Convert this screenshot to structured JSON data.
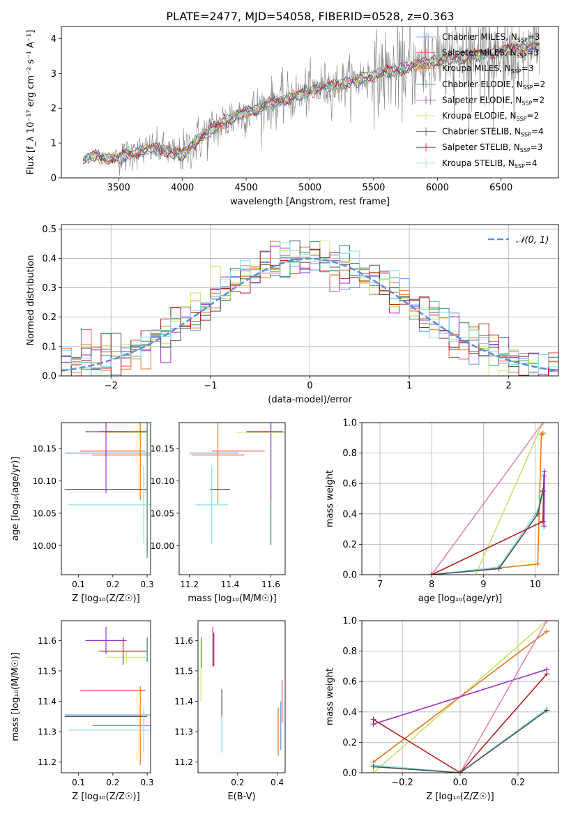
{
  "title": "PLATE=2477, MJD=54058, FIBERID=0528, z=0.363",
  "models": [
    {
      "name": "Chabrier MILES",
      "nssp": "3",
      "color": "#6495ED"
    },
    {
      "name": "Salpeter MILES",
      "nssp": "3",
      "color": "#EF5350"
    },
    {
      "name": "Kroupa MILES",
      "nssp": "3",
      "color": "#E6781E"
    },
    {
      "name": "Chabrier ELODIE",
      "nssp": "2",
      "color": "#2E8B57"
    },
    {
      "name": "Salpeter ELODIE",
      "nssp": "2",
      "color": "#9932CC"
    },
    {
      "name": "Kroupa ELODIE",
      "nssp": "2",
      "color": "#C5E36E"
    },
    {
      "name": "Chabrier STELIB",
      "nssp": "4",
      "color": "#505050"
    },
    {
      "name": "Salpeter STELIB",
      "nssp": "3",
      "color": "#B22222"
    },
    {
      "name": "Kroupa STELIB",
      "nssp": "4",
      "color": "#80DEEA"
    }
  ],
  "chart_data": [
    {
      "id": "spectrum",
      "type": "line",
      "xlabel": "wavelength [Angstrom, rest frame]",
      "ylabel": "Flux [f_λ 10⁻¹⁷ erg cm⁻² s⁻¹ A⁻¹]",
      "xlim": [
        3050,
        6950
      ],
      "ylim": [
        0,
        4.35
      ],
      "xticks": [
        3500,
        4000,
        4500,
        5000,
        5500,
        6000,
        6500
      ],
      "yticks": [
        0,
        1,
        2,
        3,
        4
      ],
      "legend_loc": "right",
      "data_color": "#808080",
      "wavelength": [
        3220,
        3300,
        3400,
        3500,
        3600,
        3700,
        3800,
        3900,
        4000,
        4100,
        4200,
        4300,
        4400,
        4500,
        4600,
        4700,
        4800,
        4900,
        5000,
        5100,
        5200,
        5300,
        5400,
        5500,
        5600,
        5700,
        5800,
        5900,
        6000,
        6100,
        6200,
        6300,
        6400,
        6500,
        6600,
        6750
      ],
      "flux": [
        0.5,
        0.65,
        0.58,
        0.55,
        0.7,
        0.8,
        0.85,
        0.75,
        0.65,
        1.05,
        1.3,
        1.55,
        1.75,
        1.9,
        2.0,
        2.15,
        2.25,
        2.35,
        2.5,
        2.6,
        2.65,
        2.75,
        2.85,
        2.95,
        3.05,
        3.1,
        3.2,
        3.3,
        3.35,
        3.4,
        3.45,
        3.5,
        3.6,
        3.65,
        3.7,
        3.75
      ]
    },
    {
      "id": "residuals",
      "type": "step",
      "xlabel": "(data-model)/error",
      "ylabel": "Normed distribution",
      "xlim": [
        -2.5,
        2.5
      ],
      "ylim": [
        0,
        0.515
      ],
      "xticks": [
        -2,
        -1,
        0,
        1,
        2
      ],
      "yticks": [
        0,
        0.1,
        0.2,
        0.3,
        0.4,
        0.5
      ],
      "grid": true,
      "gauss_label": "𝒩(0, 1)",
      "gauss_color": "#5B8FD8"
    },
    {
      "id": "age_vs_Z",
      "type": "errorbar",
      "xlabel": "Z [log₁₀(Z/Z☉)]",
      "ylabel": "age  [log₁₀(age/yr)]",
      "xlim": [
        0.05,
        0.31
      ],
      "ylim": [
        9.955,
        10.19
      ],
      "xticks": [
        0.1,
        0.2,
        0.3
      ],
      "yticks": [
        10.0,
        10.05,
        10.1,
        10.15
      ],
      "points": [
        {
          "model": 0,
          "x": 0.2,
          "y": 10.143,
          "xerr": 0.14,
          "yerr": 0.0
        },
        {
          "model": 1,
          "x": 0.2,
          "y": 10.146,
          "xerr": 0.095,
          "yerr": 0.0
        },
        {
          "model": 2,
          "x": 0.28,
          "y": 10.14,
          "xerr": 0.14,
          "yerr": 0.07
        },
        {
          "model": 3,
          "x": 0.3,
          "y": 10.176,
          "xerr": 0.0,
          "yerr": 0.195
        },
        {
          "model": 4,
          "x": 0.18,
          "y": 10.176,
          "xerr": 0.06,
          "yerr": 0.095
        },
        {
          "model": 5,
          "x": 0.24,
          "y": 10.175,
          "xerr": 0.06,
          "yerr": 0.0
        },
        {
          "model": 6,
          "x": 0.18,
          "y": 10.087,
          "xerr": 0.12,
          "yerr": 0.0
        },
        {
          "model": 7,
          "x": 0.23,
          "y": 10.176,
          "xerr": 0.07,
          "yerr": 0.0
        },
        {
          "model": 8,
          "x": 0.29,
          "y": 10.063,
          "xerr": 0.22,
          "yerr": 0.06
        }
      ]
    },
    {
      "id": "age_vs_mass",
      "type": "errorbar",
      "xlabel": "mass [log₁₀(M/M☉)]",
      "ylabel": "",
      "xlim": [
        11.15,
        11.67
      ],
      "ylim": [
        9.955,
        10.19
      ],
      "xticks": [
        11.2,
        11.4,
        11.6
      ],
      "yticks": [
        10.0,
        10.05,
        10.1,
        10.15
      ],
      "points": [
        {
          "model": 0,
          "x": 11.32,
          "y": 10.143,
          "xerr": 0.12,
          "yerr": 0.0
        },
        {
          "model": 1,
          "x": 11.44,
          "y": 10.146,
          "xerr": 0.13,
          "yerr": 0.0
        },
        {
          "model": 2,
          "x": 11.34,
          "y": 10.14,
          "xerr": 0.13,
          "yerr": 0.075
        },
        {
          "model": 3,
          "x": 11.6,
          "y": 10.176,
          "xerr": 0.0,
          "yerr": 0.175
        },
        {
          "model": 4,
          "x": 11.6,
          "y": 10.176,
          "xerr": 0.0,
          "yerr": 0.105
        },
        {
          "model": 5,
          "x": 11.56,
          "y": 10.175,
          "xerr": 0.13,
          "yerr": 0.0
        },
        {
          "model": 6,
          "x": 11.35,
          "y": 10.087,
          "xerr": 0.05,
          "yerr": 0.0
        },
        {
          "model": 7,
          "x": 11.57,
          "y": 10.176,
          "xerr": 0.09,
          "yerr": 0.0
        },
        {
          "model": 8,
          "x": 11.31,
          "y": 10.063,
          "xerr": 0.08,
          "yerr": 0.06
        }
      ]
    },
    {
      "id": "mass_weight_vs_age",
      "type": "line",
      "xlabel": "age  [log₁₀(age/yr)]",
      "ylabel": "mass weight",
      "xlim": [
        6.65,
        10.45
      ],
      "ylim": [
        0,
        1.0
      ],
      "xticks": [
        7,
        8,
        9,
        10
      ],
      "yticks": [
        0,
        0.2,
        0.4,
        0.6,
        0.8,
        1.0
      ],
      "grid": true,
      "series": [
        {
          "model": 2,
          "x": [
            8.0,
            10.05,
            10.12,
            10.15
          ],
          "y": [
            0.0,
            0.07,
            0.92,
            0.93
          ]
        },
        {
          "model": 5,
          "x": [
            8.85,
            10.15
          ],
          "y": [
            0.0,
            1.0
          ]
        },
        {
          "model": 9,
          "x": [
            8.0,
            10.15
          ],
          "y": [
            0.0,
            1.0
          ]
        },
        {
          "model": 8,
          "x": [
            8.0,
            9.3,
            10.05,
            10.12
          ],
          "y": [
            0.0,
            0.05,
            0.42,
            0.52
          ]
        },
        {
          "model": 6,
          "x": [
            8.0,
            9.3,
            10.05,
            10.15
          ],
          "y": [
            0.0,
            0.04,
            0.4,
            0.55
          ]
        },
        {
          "model": 7,
          "x": [
            8.0,
            10.15,
            10.17
          ],
          "y": [
            0.0,
            0.35,
            0.65
          ]
        },
        {
          "model": 4,
          "x": [
            10.17,
            10.18
          ],
          "y": [
            0.32,
            0.68
          ]
        }
      ]
    },
    {
      "id": "mass_vs_Z",
      "type": "errorbar",
      "xlabel": "Z [log₁₀(Z/Z☉)]",
      "ylabel": "mass [log₁₀(M/M☉)]",
      "xlim": [
        0.05,
        0.31
      ],
      "ylim": [
        11.165,
        11.665
      ],
      "xticks": [
        0.1,
        0.2,
        0.3
      ],
      "yticks": [
        11.2,
        11.3,
        11.4,
        11.5,
        11.6
      ],
      "points": [
        {
          "model": 0,
          "x": 0.2,
          "y": 11.355,
          "xerr": 0.14,
          "yerr": 0.0
        },
        {
          "model": 1,
          "x": 0.2,
          "y": 11.435,
          "xerr": 0.095,
          "yerr": 0.0
        },
        {
          "model": 2,
          "x": 0.28,
          "y": 11.32,
          "xerr": 0.14,
          "yerr": 0.13
        },
        {
          "model": 3,
          "x": 0.3,
          "y": 11.57,
          "xerr": 0.0,
          "yerr": 0.04
        },
        {
          "model": 4,
          "x": 0.18,
          "y": 11.6,
          "xerr": 0.06,
          "yerr": 0.045
        },
        {
          "model": 5,
          "x": 0.24,
          "y": 11.545,
          "xerr": 0.06,
          "yerr": 0.02
        },
        {
          "model": 6,
          "x": 0.18,
          "y": 11.35,
          "xerr": 0.12,
          "yerr": 0.0
        },
        {
          "model": 7,
          "x": 0.23,
          "y": 11.565,
          "xerr": 0.07,
          "yerr": 0.045
        },
        {
          "model": 8,
          "x": 0.29,
          "y": 11.305,
          "xerr": 0.22,
          "yerr": 0.075
        }
      ]
    },
    {
      "id": "mass_vs_ebv",
      "type": "errorbar",
      "xlabel": "E(B-V)",
      "ylabel": "",
      "xlim": [
        0.0,
        0.44
      ],
      "ylim": [
        11.165,
        11.665
      ],
      "xticks": [
        0.2,
        0.4
      ],
      "yticks": [
        11.2,
        11.3,
        11.4,
        11.5,
        11.6
      ],
      "points": [
        {
          "model": 0,
          "x": 0.418,
          "y": 11.32,
          "xerr": 0,
          "yerr": 0.08
        },
        {
          "model": 1,
          "x": 0.425,
          "y": 11.4,
          "xerr": 0,
          "yerr": 0.07
        },
        {
          "model": 2,
          "x": 0.405,
          "y": 11.3,
          "xerr": 0,
          "yerr": 0.08
        },
        {
          "model": 3,
          "x": 0.018,
          "y": 11.56,
          "xerr": 0,
          "yerr": 0.05
        },
        {
          "model": 4,
          "x": 0.075,
          "y": 11.58,
          "xerr": 0,
          "yerr": 0.065
        },
        {
          "model": 5,
          "x": 0.015,
          "y": 11.5,
          "xerr": 0,
          "yerr": 0.1
        },
        {
          "model": 6,
          "x": 0.12,
          "y": 11.34,
          "xerr": 0,
          "yerr": 0.1
        },
        {
          "model": 7,
          "x": 0.08,
          "y": 11.57,
          "xerr": 0,
          "yerr": 0.055
        },
        {
          "model": 8,
          "x": 0.12,
          "y": 11.29,
          "xerr": 0,
          "yerr": 0.06
        }
      ]
    },
    {
      "id": "mass_weight_vs_Z",
      "type": "line",
      "xlabel": "Z [log₁₀(Z/Z☉)]",
      "ylabel": "mass weight",
      "xlim": [
        -0.34,
        0.34
      ],
      "ylim": [
        0,
        1.0
      ],
      "xticks": [
        -0.2,
        0.0,
        0.2
      ],
      "yticks": [
        0,
        0.2,
        0.4,
        0.6,
        0.8,
        1.0
      ],
      "grid": true,
      "series": [
        {
          "model": 5,
          "x": [
            -0.3,
            0.3
          ],
          "y": [
            0.0,
            1.0
          ]
        },
        {
          "model": 2,
          "x": [
            -0.3,
            0.3
          ],
          "y": [
            0.07,
            0.93
          ]
        },
        {
          "model": 4,
          "x": [
            -0.3,
            0.3
          ],
          "y": [
            0.32,
            0.68
          ]
        },
        {
          "model": 9,
          "x": [
            0.0,
            0.3
          ],
          "y": [
            0.0,
            1.0
          ]
        },
        {
          "model": 7,
          "x": [
            -0.3,
            0.0,
            0.3
          ],
          "y": [
            0.35,
            0.0,
            0.65
          ]
        },
        {
          "model": 8,
          "x": [
            -0.3,
            0.0,
            0.3
          ],
          "y": [
            0.05,
            0.0,
            0.42
          ]
        },
        {
          "model": 6,
          "x": [
            -0.3,
            0.0,
            0.3
          ],
          "y": [
            0.04,
            0.0,
            0.41
          ]
        }
      ]
    }
  ],
  "extra_color": "#E386B8"
}
